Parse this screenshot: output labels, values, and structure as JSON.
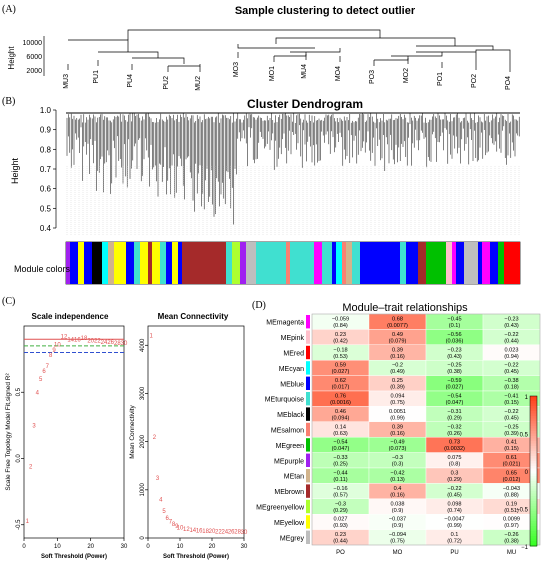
{
  "panels": {
    "A": "(A)",
    "B": "(B)",
    "C": "(C)",
    "D": "(D)"
  },
  "sample_clustering": {
    "title": "Sample clustering to detect outlier",
    "ylabel": "Height",
    "yticks": [
      "10000",
      "6000",
      "2000"
    ],
    "leaves": [
      "MU3",
      "PU1",
      "PU4",
      "PU2",
      "MU2",
      "MO3",
      "MO1",
      "MU4",
      "MO4",
      "PO3",
      "MO2",
      "PO1",
      "PO2",
      "PO4"
    ]
  },
  "cluster_dendrogram": {
    "title": "Cluster Dendrogram",
    "ylabel": "Height",
    "yticks": [
      "1.0",
      "0.9",
      "0.8",
      "0.7",
      "0.6",
      "0.5",
      "0.4"
    ],
    "colorbar_label": "Module colors"
  },
  "chart_data": [
    {
      "type": "scatter",
      "title": "Scale independence",
      "xlabel": "Soft Threshold (Power)",
      "ylabel": "Scale Free Topology Model Fit,signed R^2",
      "xlim": [
        0,
        30
      ],
      "ylim": [
        -0.6,
        1.0
      ],
      "xticks": [
        "0",
        "10",
        "20",
        "30"
      ],
      "yticks": [
        "-0.5",
        "0.0",
        "0.5"
      ],
      "x": [
        1,
        2,
        3,
        4,
        5,
        6,
        7,
        8,
        9,
        10,
        12,
        14,
        16,
        18,
        20,
        22,
        24,
        26,
        28,
        30
      ],
      "y": [
        -0.47,
        -0.06,
        0.25,
        0.5,
        0.6,
        0.66,
        0.7,
        0.78,
        0.82,
        0.86,
        0.92,
        0.9,
        0.9,
        0.91,
        0.89,
        0.89,
        0.88,
        0.88,
        0.87,
        0.87
      ],
      "hlines": [
        {
          "y": 0.9,
          "color": "#e05050"
        },
        {
          "y": 0.85,
          "color": "#40b040"
        },
        {
          "y": 0.8,
          "color": "#3050d0"
        }
      ]
    },
    {
      "type": "scatter",
      "title": "Mean Connectivity",
      "xlabel": "Soft Threshold (Power)",
      "ylabel": "Mean Connectivity",
      "xlim": [
        0,
        30
      ],
      "ylim": [
        0,
        4400
      ],
      "xticks": [
        "0",
        "10",
        "20",
        "30"
      ],
      "yticks": [
        "0",
        "1000",
        "2000",
        "3000",
        "4000"
      ],
      "x": [
        1,
        2,
        3,
        4,
        5,
        6,
        7,
        8,
        9,
        10,
        12,
        14,
        16,
        18,
        20,
        22,
        24,
        26,
        28,
        30
      ],
      "y": [
        4200,
        2100,
        1250,
        800,
        560,
        420,
        340,
        290,
        250,
        220,
        190,
        170,
        160,
        150,
        145,
        140,
        135,
        132,
        130,
        128
      ]
    },
    {
      "type": "heatmap",
      "title": "Module–trait relationships",
      "columns": [
        "PO",
        "MO",
        "PU",
        "MU"
      ],
      "rows": [
        {
          "name": "MEmagenta",
          "color": "#ff00ff",
          "r": [
            "−0.059",
            "0.68",
            "−0.45",
            "−0.23"
          ],
          "p": [
            "(0.84)",
            "(0.0077)",
            "(0.1)",
            "(0.43)"
          ],
          "v": [
            -0.059,
            0.68,
            -0.45,
            -0.23
          ]
        },
        {
          "name": "MEpink",
          "color": "#ffc0cb",
          "r": [
            "0.23",
            "0.49",
            "−0.56",
            "−0.22"
          ],
          "p": [
            "(0.42)",
            "(0.079)",
            "(0.036)",
            "(0.44)"
          ],
          "v": [
            0.23,
            0.49,
            -0.56,
            -0.22
          ]
        },
        {
          "name": "MEred",
          "color": "#ff0000",
          "r": [
            "−0.18",
            "0.39",
            "−0.23",
            "0.023"
          ],
          "p": [
            "(0.53)",
            "(0.16)",
            "(0.43)",
            "(0.94)"
          ],
          "v": [
            -0.18,
            0.39,
            -0.23,
            0.023
          ]
        },
        {
          "name": "MEcyan",
          "color": "#00ffff",
          "r": [
            "0.59",
            "−0.2",
            "−0.25",
            "−0.22"
          ],
          "p": [
            "(0.027)",
            "(0.49)",
            "(0.38)",
            "(0.45)"
          ],
          "v": [
            0.59,
            -0.2,
            -0.25,
            -0.22
          ]
        },
        {
          "name": "MEblue",
          "color": "#0000ff",
          "r": [
            "0.62",
            "0.25",
            "−0.59",
            "−0.38"
          ],
          "p": [
            "(0.017)",
            "(0.39)",
            "(0.027)",
            "(0.18)"
          ],
          "v": [
            0.62,
            0.25,
            -0.59,
            -0.38
          ]
        },
        {
          "name": "MEturquoise",
          "color": "#40e0d0",
          "r": [
            "0.76",
            "0.094",
            "−0.54",
            "−0.41"
          ],
          "p": [
            "(0.0016)",
            "(0.75)",
            "(0.047)",
            "(0.15)"
          ],
          "v": [
            0.76,
            0.094,
            -0.54,
            -0.41
          ]
        },
        {
          "name": "MEblack",
          "color": "#000000",
          "r": [
            "0.46",
            "0.0051",
            "−0.31",
            "−0.22"
          ],
          "p": [
            "(0.094)",
            "(0.99)",
            "(0.29)",
            "(0.45)"
          ],
          "v": [
            0.46,
            0.0051,
            -0.31,
            -0.22
          ]
        },
        {
          "name": "MEsalmon",
          "color": "#fa8072",
          "r": [
            "0.14",
            "0.39",
            "−0.32",
            "−0.25"
          ],
          "p": [
            "(0.63)",
            "(0.16)",
            "(0.26)",
            "(0.39)"
          ],
          "v": [
            0.14,
            0.39,
            -0.32,
            -0.25
          ]
        },
        {
          "name": "MEgreen",
          "color": "#00c000",
          "r": [
            "−0.54",
            "−0.49",
            "0.73",
            "0.41"
          ],
          "p": [
            "(0.047)",
            "(0.073)",
            "(0.0032)",
            "(0.15)"
          ],
          "v": [
            -0.54,
            -0.49,
            0.73,
            0.41
          ]
        },
        {
          "name": "MEpurple",
          "color": "#a020f0",
          "r": [
            "−0.33",
            "−0.3",
            "0.075",
            "0.61"
          ],
          "p": [
            "(0.25)",
            "(0.3)",
            "(0.8)",
            "(0.021)"
          ],
          "v": [
            -0.33,
            -0.3,
            0.075,
            0.61
          ]
        },
        {
          "name": "MEtan",
          "color": "#d2b48c",
          "r": [
            "−0.44",
            "−0.42",
            "0.3",
            "0.65"
          ],
          "p": [
            "(0.11)",
            "(0.13)",
            "(0.29)",
            "(0.012)"
          ],
          "v": [
            -0.44,
            -0.42,
            0.3,
            0.65
          ]
        },
        {
          "name": "MEbrown",
          "color": "#a52a2a",
          "r": [
            "−0.16",
            "0.4",
            "−0.22",
            "−0.043"
          ],
          "p": [
            "(0.57)",
            "(0.16)",
            "(0.45)",
            "(0.88)"
          ],
          "v": [
            -0.16,
            0.4,
            -0.22,
            -0.043
          ]
        },
        {
          "name": "MEgreenyellow",
          "color": "#adff2f",
          "r": [
            "−0.3",
            "0.038",
            "0.098",
            "0.19"
          ],
          "p": [
            "(0.29)",
            "(0.9)",
            "(0.74)",
            "(0.51)"
          ],
          "v": [
            -0.3,
            0.038,
            0.098,
            0.19
          ]
        },
        {
          "name": "MEyellow",
          "color": "#ffff00",
          "r": [
            "0.027",
            "−0.037",
            "−0.0047",
            "0.0099"
          ],
          "p": [
            "(0.93)",
            "(0.9)",
            "(0.99)",
            "(0.97)"
          ],
          "v": [
            0.027,
            -0.037,
            -0.0047,
            0.0099
          ]
        },
        {
          "name": "MEgrey",
          "color": "#bebebe",
          "r": [
            "0.23",
            "−0.094",
            "0.1",
            "−0.26"
          ],
          "p": [
            "(0.44)",
            "(0.75)",
            "(0.72)",
            "(0.38)"
          ],
          "v": [
            0.23,
            -0.094,
            0.1,
            -0.26
          ]
        }
      ],
      "scale_ticks": [
        "1",
        "0.5",
        "0",
        "−0.5",
        "−1"
      ]
    }
  ]
}
